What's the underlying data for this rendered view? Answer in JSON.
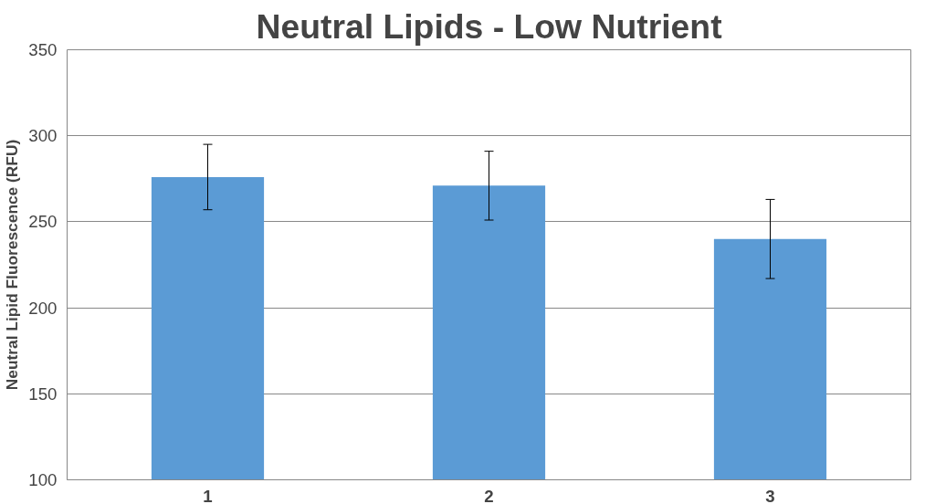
{
  "chart_data": {
    "type": "bar",
    "title": "Neutral Lipids - Low Nutrient",
    "ylabel": "Neutral Lipid Fluorescence (RFU)",
    "categories": [
      "1",
      "2",
      "3"
    ],
    "values": [
      276,
      271,
      240
    ],
    "errors": [
      19,
      20,
      23
    ],
    "color": "#5b9bd5",
    "ylim": [
      100,
      350
    ],
    "yticks": [
      100,
      150,
      200,
      250,
      300,
      350
    ],
    "grid": "y"
  }
}
